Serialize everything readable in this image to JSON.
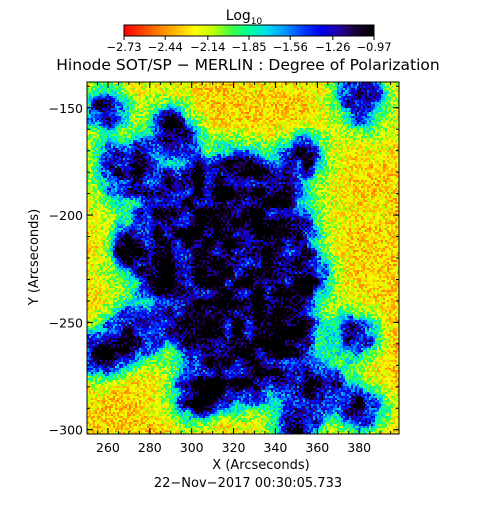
{
  "chart_data": {
    "type": "heatmap",
    "title": "Hinode SOT/SP − MERLIN : Degree of Polarization",
    "xlabel": "X (Arcseconds)",
    "ylabel": "Y (Arcseconds)",
    "date": "22−Nov−2017 00:30:05.733",
    "xlim": [
      250,
      399
    ],
    "ylim": [
      -302,
      -138
    ],
    "x_ticks": [
      260,
      280,
      300,
      320,
      340,
      360,
      380
    ],
    "x_tick_labels": [
      "260",
      "280",
      "300",
      "320",
      "340",
      "360",
      "380"
    ],
    "y_ticks": [
      -150,
      -200,
      -250,
      -300
    ],
    "y_tick_labels": [
      "−150",
      "−200",
      "−250",
      "−300"
    ],
    "colorbar": {
      "title_base": "Log",
      "title_sub": "10",
      "tick_labels": [
        "−2.73",
        "−2.44",
        "−2.14",
        "−1.85",
        "−1.56",
        "−1.26",
        "−0.97"
      ],
      "tick_values": [
        -2.73,
        -2.44,
        -2.14,
        -1.85,
        -1.56,
        -1.26,
        -0.97
      ],
      "range": [
        -2.73,
        -0.97
      ],
      "colors": [
        "#ff0000",
        "#ff4000",
        "#ff8000",
        "#ffbf00",
        "#ffff00",
        "#bfff00",
        "#40ff40",
        "#00ff99",
        "#00ddee",
        "#0099ff",
        "#0040ff",
        "#0000ee",
        "#2200aa",
        "#1a0030",
        "#000000"
      ]
    },
    "strong_regions": [
      {
        "x": 298,
        "y": -205,
        "r": 11
      },
      {
        "x": 310,
        "y": -200,
        "r": 7
      },
      {
        "x": 322,
        "y": -205,
        "r": 9
      },
      {
        "x": 335,
        "y": -203,
        "r": 8
      },
      {
        "x": 312,
        "y": -220,
        "r": 7
      },
      {
        "x": 330,
        "y": -222,
        "r": 6
      },
      {
        "x": 290,
        "y": -222,
        "r": 6
      },
      {
        "x": 348,
        "y": -228,
        "r": 6
      },
      {
        "x": 300,
        "y": -250,
        "r": 5
      },
      {
        "x": 272,
        "y": -255,
        "r": 5
      },
      {
        "x": 330,
        "y": -262,
        "r": 8
      },
      {
        "x": 344,
        "y": -250,
        "r": 5
      },
      {
        "x": 318,
        "y": -272,
        "r": 6
      },
      {
        "x": 268,
        "y": -178,
        "r": 5
      },
      {
        "x": 352,
        "y": -172,
        "r": 4
      },
      {
        "x": 322,
        "y": -186,
        "r": 5
      },
      {
        "x": 290,
        "y": -160,
        "r": 4
      },
      {
        "x": 258,
        "y": -150,
        "r": 4
      },
      {
        "x": 380,
        "y": -146,
        "r": 5
      },
      {
        "x": 378,
        "y": -256,
        "r": 4
      },
      {
        "x": 362,
        "y": -280,
        "r": 5
      },
      {
        "x": 380,
        "y": -290,
        "r": 4
      },
      {
        "x": 256,
        "y": -265,
        "r": 4
      },
      {
        "x": 350,
        "y": -300,
        "r": 4
      },
      {
        "x": 300,
        "y": -285,
        "r": 4
      },
      {
        "x": 270,
        "y": -215,
        "r": 3
      }
    ]
  }
}
